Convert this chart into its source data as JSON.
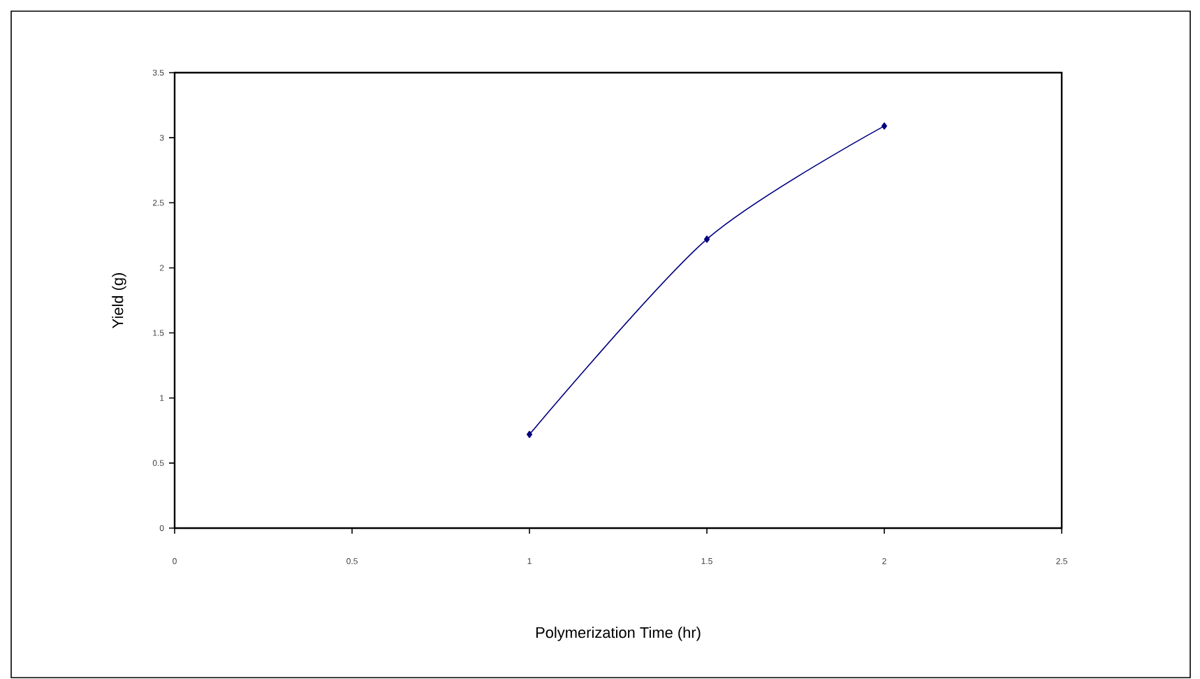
{
  "chart_data": {
    "type": "line",
    "xlabel": "Polymerization Time (hr)",
    "ylabel": "Yield (g)",
    "x": [
      1,
      1.5,
      2
    ],
    "series": [
      {
        "color": "#000080",
        "values": [
          0.72,
          2.22,
          3.09
        ]
      }
    ],
    "xlim": [
      0,
      2.5
    ],
    "xticks": [
      0,
      0.5,
      1,
      1.5,
      2,
      2.5
    ],
    "ylim": [
      0,
      3.5
    ],
    "yticks": [
      0,
      0.5,
      1,
      1.5,
      2,
      2.5,
      3,
      3.5
    ],
    "grid": false,
    "marker": "diamond",
    "line_style": "solid"
  }
}
